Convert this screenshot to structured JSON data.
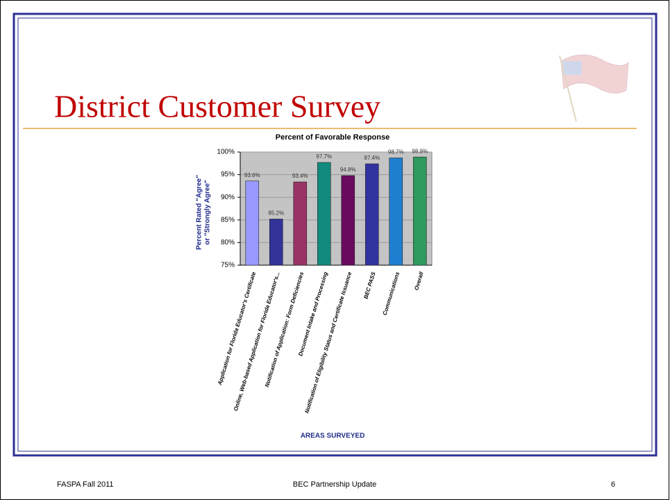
{
  "slide": {
    "title": "District Customer Survey",
    "footer_left": "FASPA Fall 2011",
    "footer_center": "BEC Partnership Update",
    "footer_right": "6"
  },
  "chart_data": {
    "type": "bar",
    "title": "Percent of Favorable Response",
    "y_label": [
      "Percent Rated \"Agree\"",
      "or \"Strongly Agree\""
    ],
    "x_label": "AREAS SURVEYED",
    "categories": [
      "Application for Florida Educator's Certificate",
      "Online, Web-based Application for Florida Educator's...",
      "Notification of Application: Form Deficiencies",
      "Document Intake and Processing",
      "Notification of Eligibility Status and Certificate Issuance",
      "BEC PASS",
      "Communications",
      "Overall"
    ],
    "values": [
      93.6,
      85.2,
      93.4,
      97.7,
      94.8,
      97.4,
      98.7,
      98.9
    ],
    "value_labels": [
      "93.6%",
      "85.2%",
      "93.4%",
      "97.7%",
      "94.8%",
      "97.4%",
      "98.7%",
      "98.9%"
    ],
    "colors": [
      "#9999ff",
      "#333399",
      "#993366",
      "#138a7e",
      "#6a0a5e",
      "#3333a0",
      "#1f7fd0",
      "#2e9a5e"
    ],
    "ylim": [
      75,
      100
    ],
    "yticks": [
      {
        "value": 75,
        "label": "75%"
      },
      {
        "value": 80,
        "label": "80%"
      },
      {
        "value": 85,
        "label": "85%"
      },
      {
        "value": 90,
        "label": "90%"
      },
      {
        "value": 95,
        "label": "95%"
      },
      {
        "value": 100,
        "label": "100%"
      }
    ],
    "grid": true
  }
}
